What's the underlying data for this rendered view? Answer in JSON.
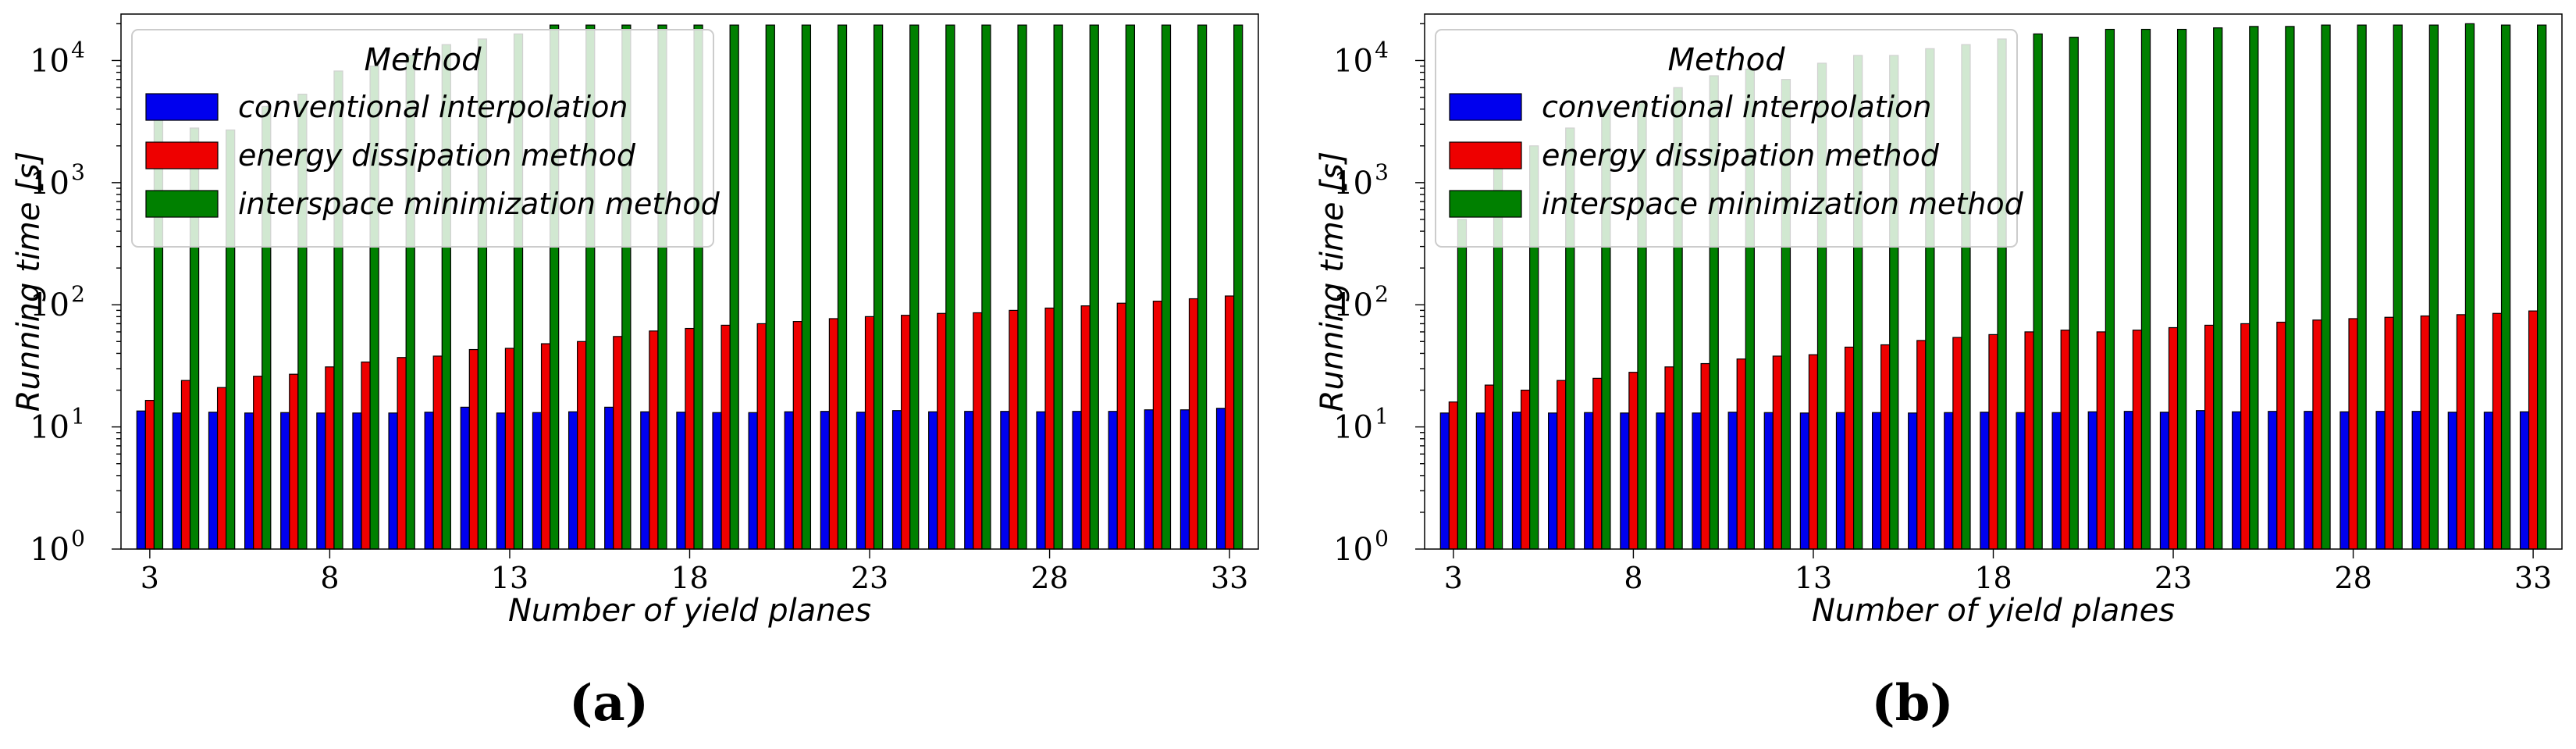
{
  "figure": {
    "panels": [
      {
        "label": "(a)",
        "chart_data": {
          "type": "bar",
          "title": "",
          "xlabel": "Number of yield planes",
          "ylabel": "Running time [s]",
          "yscale": "log",
          "ylim": [
            1,
            24000
          ],
          "grid": false,
          "x": [
            3,
            4,
            5,
            6,
            7,
            8,
            9,
            10,
            11,
            12,
            13,
            14,
            15,
            16,
            17,
            18,
            19,
            20,
            21,
            22,
            23,
            24,
            25,
            26,
            27,
            28,
            29,
            30,
            31,
            32,
            33
          ],
          "xticks": [
            3,
            8,
            13,
            18,
            23,
            28,
            33
          ],
          "xtick_labels": [
            "3",
            "8",
            "13",
            "18",
            "23",
            "28",
            "33"
          ],
          "yticks": [
            1,
            10,
            100,
            1000,
            10000
          ],
          "ytick_labels": [
            "10",
            "10",
            "10",
            "10",
            "10"
          ],
          "ytick_exponents": [
            "0",
            "1",
            "2",
            "3",
            "4"
          ],
          "legend": {
            "title": "Method",
            "position": "upper-left"
          },
          "series": [
            {
              "name": "conventional interpolation",
              "color": "#0000ee",
              "values": [
                13.5,
                13,
                13.2,
                13,
                13.1,
                13,
                13,
                13,
                13.2,
                14.5,
                13,
                13.1,
                13.3,
                14.5,
                13.3,
                13.2,
                13.1,
                13.1,
                13.3,
                13.4,
                13.2,
                13.6,
                13.3,
                13.4,
                13.4,
                13.3,
                13.4,
                13.4,
                13.8,
                13.8,
                14.2
              ]
            },
            {
              "name": "energy dissipation method",
              "color": "#ee0000",
              "values": [
                16.5,
                24,
                21,
                26,
                27,
                31,
                34,
                37,
                38,
                43,
                44,
                48,
                50,
                55,
                61,
                64,
                68,
                70,
                73,
                77,
                80,
                82,
                85,
                86,
                90,
                94,
                98,
                103,
                107,
                112,
                118
              ]
            },
            {
              "name": "interspace minimization method",
              "color": "#008000",
              "values": [
                3500,
                2800,
                2700,
                4200,
                5300,
                8200,
                9000,
                11000,
                13500,
                15000,
                16500,
                19500,
                19500,
                19500,
                19500,
                19500,
                19500,
                19500,
                19500,
                19500,
                19500,
                19500,
                19500,
                19500,
                19500,
                19500,
                19500,
                19500,
                19500,
                19500,
                19500
              ]
            }
          ]
        }
      },
      {
        "label": "(b)",
        "chart_data": {
          "type": "bar",
          "title": "",
          "xlabel": "Number of yield planes",
          "ylabel": "Running time [s]",
          "yscale": "log",
          "ylim": [
            1,
            24000
          ],
          "grid": false,
          "x": [
            3,
            4,
            5,
            6,
            7,
            8,
            9,
            10,
            11,
            12,
            13,
            14,
            15,
            16,
            17,
            18,
            19,
            20,
            21,
            22,
            23,
            24,
            25,
            26,
            27,
            28,
            29,
            30,
            31,
            32,
            33
          ],
          "xticks": [
            3,
            8,
            13,
            18,
            23,
            28,
            33
          ],
          "xtick_labels": [
            "3",
            "8",
            "13",
            "18",
            "23",
            "28",
            "33"
          ],
          "yticks": [
            1,
            10,
            100,
            1000,
            10000
          ],
          "ytick_labels": [
            "10",
            "10",
            "10",
            "10",
            "10"
          ],
          "ytick_exponents": [
            "0",
            "1",
            "2",
            "3",
            "4"
          ],
          "legend": {
            "title": "Method",
            "position": "upper-left"
          },
          "series": [
            {
              "name": "conventional interpolation",
              "color": "#0000ee",
              "values": [
                13,
                13,
                13.2,
                13,
                13.1,
                13,
                13,
                13,
                13.2,
                13.1,
                13,
                13.1,
                13.1,
                13,
                13.1,
                13.2,
                13.1,
                13.1,
                13.3,
                13.4,
                13.2,
                13.6,
                13.3,
                13.4,
                13.4,
                13.3,
                13.4,
                13.4,
                13.2,
                13.2,
                13.3
              ]
            },
            {
              "name": "energy dissipation method",
              "color": "#ee0000",
              "values": [
                16,
                22,
                20,
                24,
                25,
                28,
                31,
                33,
                36,
                38,
                39,
                45,
                47,
                51,
                54,
                57,
                60,
                62,
                60,
                62,
                65,
                68,
                70,
                72,
                75,
                77,
                79,
                81,
                83,
                85,
                89
              ]
            },
            {
              "name": "interspace minimization method",
              "color": "#008000",
              "values": [
                500,
                1300,
                2000,
                2800,
                4000,
                4500,
                6000,
                7500,
                8500,
                7000,
                9500,
                11000,
                11000,
                12500,
                13500,
                15000,
                16500,
                15500,
                18000,
                18000,
                18000,
                18500,
                19000,
                19000,
                19500,
                19500,
                19500,
                19500,
                20000,
                19500,
                19500
              ]
            }
          ]
        }
      }
    ]
  }
}
